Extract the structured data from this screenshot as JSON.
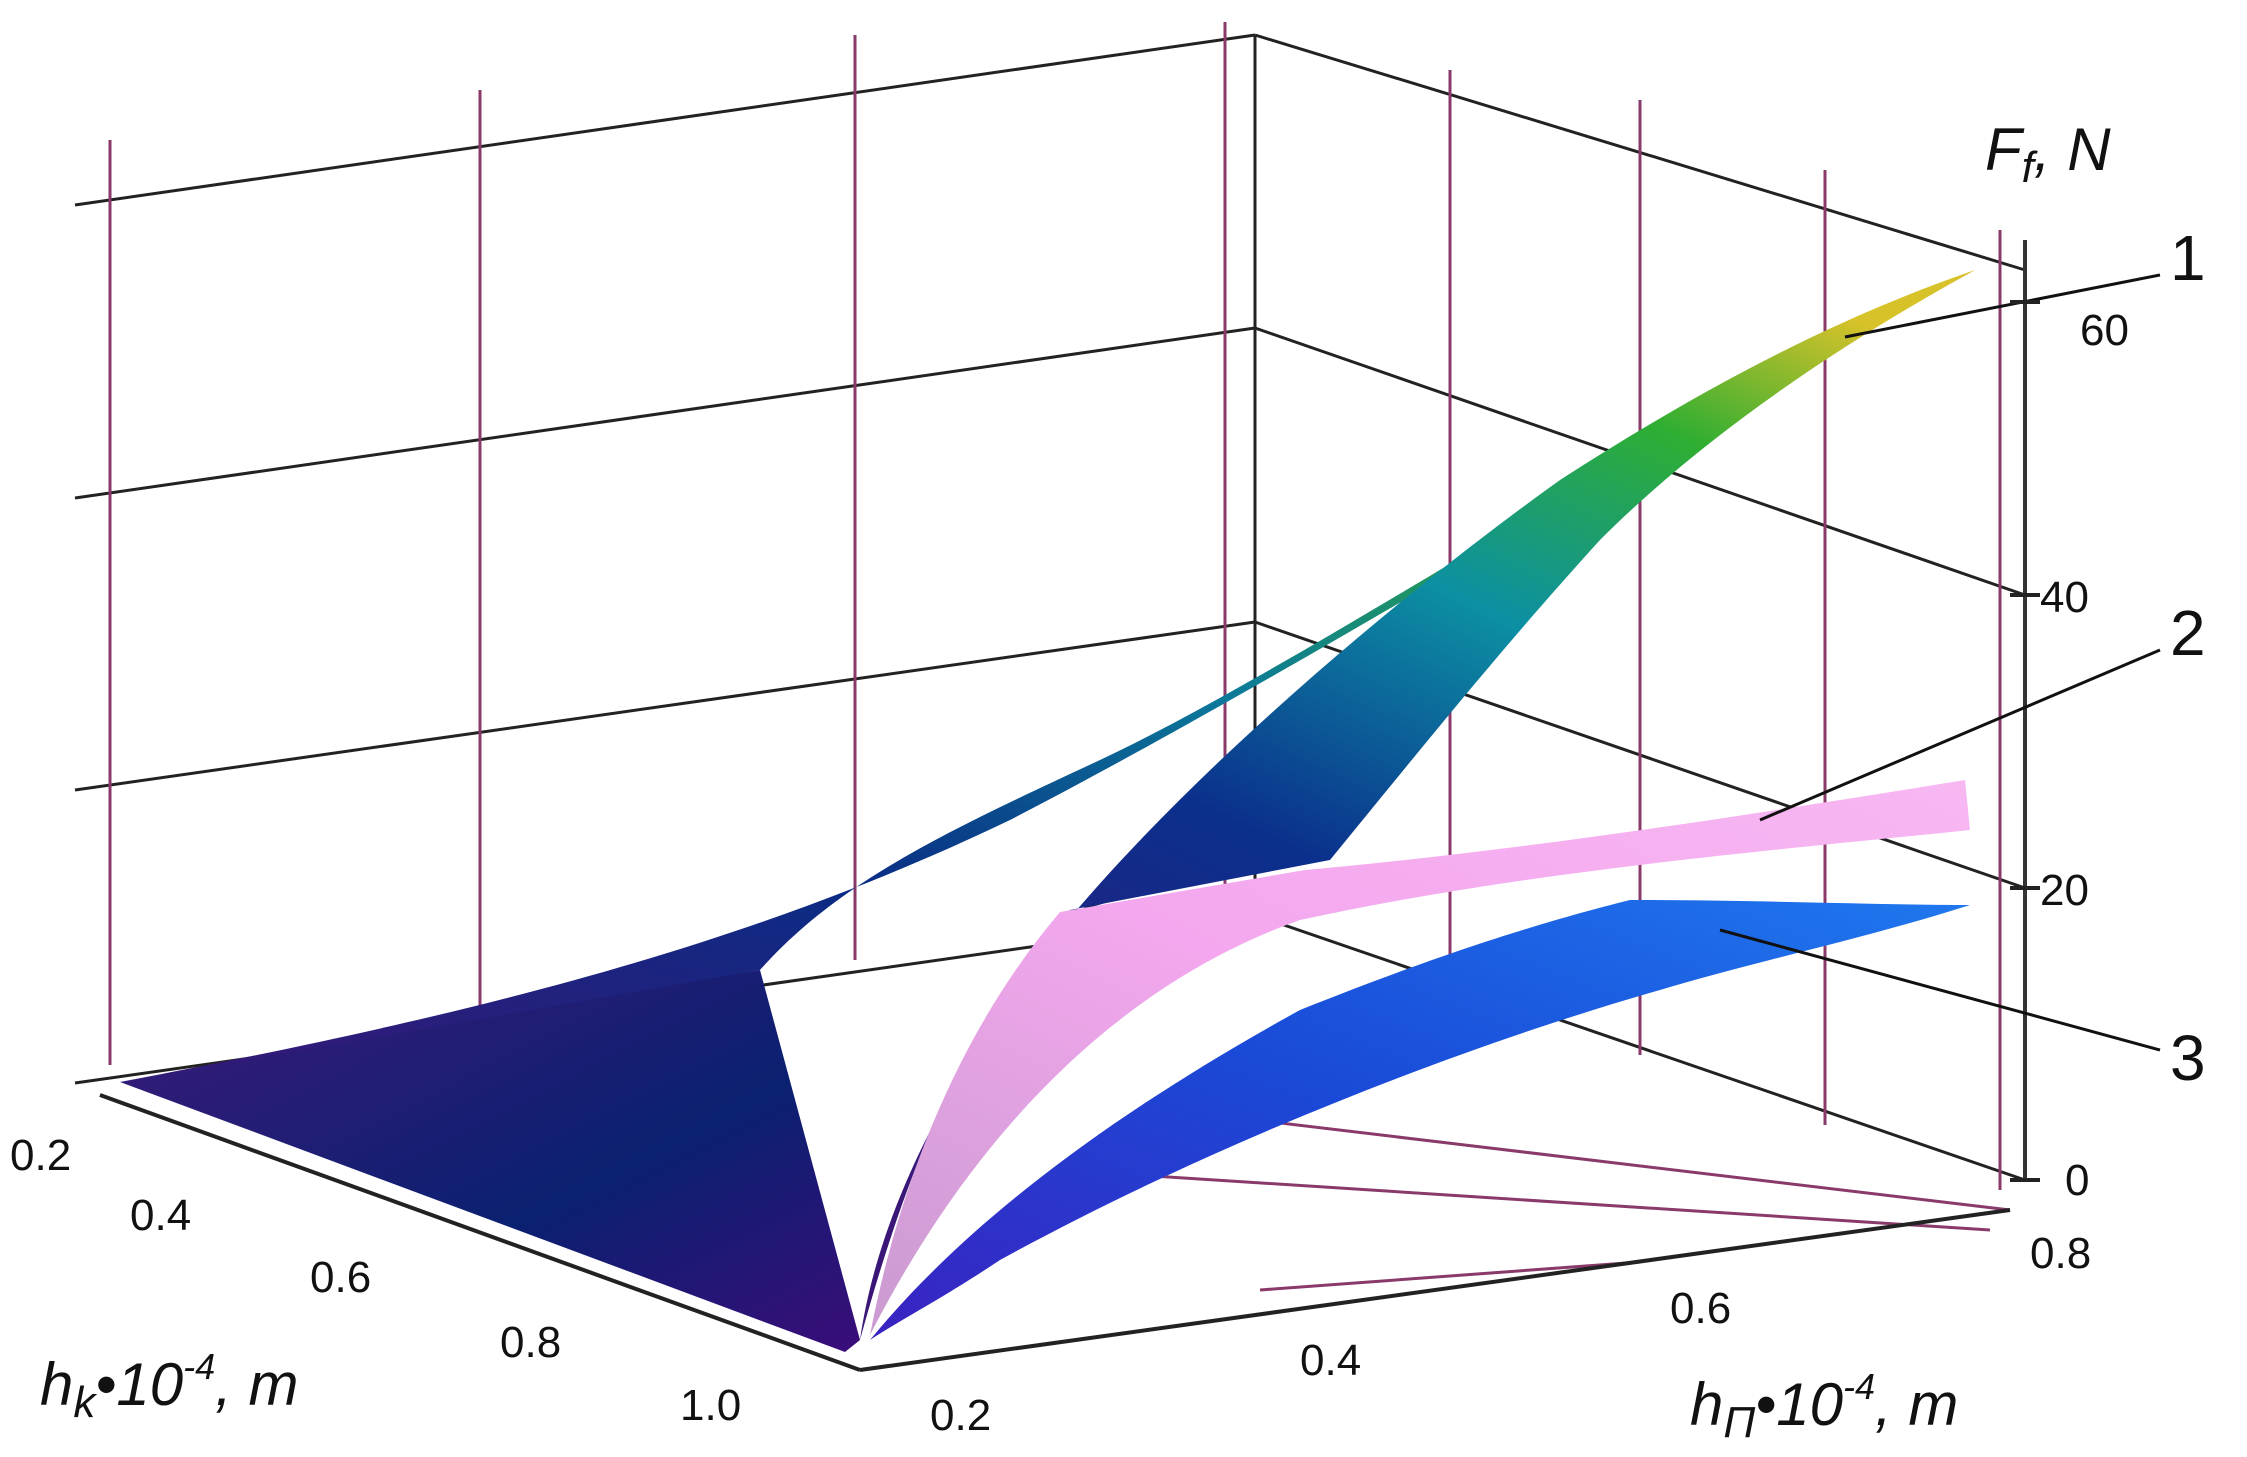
{
  "chart_data": {
    "type": "surface3d",
    "title": "",
    "axes": {
      "z": {
        "label_main": "F",
        "label_sub": "f",
        "label_rest": ", N",
        "range": [
          0,
          60
        ],
        "ticks": [
          "0",
          "20",
          "40",
          "60"
        ]
      },
      "hk": {
        "label_main": "h",
        "label_sub": "k",
        "label_mid": "•10",
        "label_sup": "-4",
        "label_rest": ",  m",
        "range": [
          0.2,
          1.0
        ],
        "ticks": [
          "0.2",
          "0.4",
          "0.6",
          "0.8",
          "1.0"
        ]
      },
      "hp": {
        "label_main": "h",
        "label_sub": "Π",
        "label_mid": "•10",
        "label_sup": "-4",
        "label_rest": ",  m",
        "range": [
          0.2,
          0.8
        ],
        "ticks": [
          "0.2",
          "0.4",
          "0.6",
          "0.8"
        ]
      }
    },
    "surfaces": [
      {
        "label": "1",
        "color_low": "#4a148c",
        "color_mid": "#0d3b8f",
        "color_high": "#2eaa2e",
        "color_top": "#e53935"
      },
      {
        "label": "2",
        "color": "#f4a6ee"
      },
      {
        "label": "3",
        "color": "#1a56e0"
      }
    ]
  }
}
